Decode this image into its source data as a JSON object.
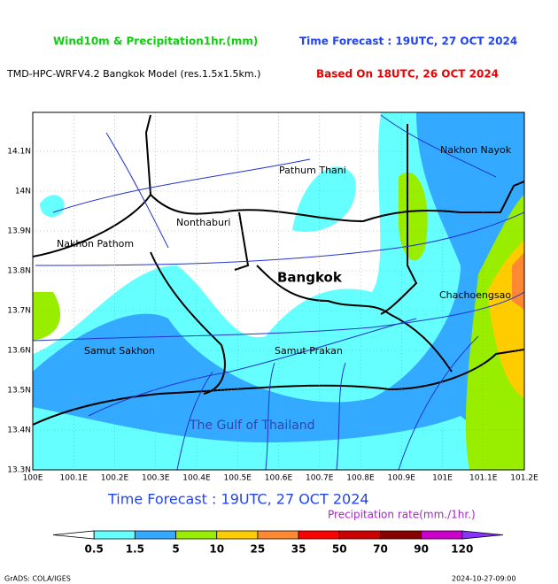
{
  "header": {
    "title": "Wind10m & Precipitation1hr.(mm)",
    "forecast_time": "Time Forecast : 19UTC, 27 OCT 2024",
    "model": "TMD-HPC-WRFV4.2 Bangkok Model (res.1.5x1.5km.)",
    "based_on": "Based On 18UTC, 26 OCT 2024"
  },
  "map": {
    "x_labels": [
      "100E",
      "100.1E",
      "100.2E",
      "100.3E",
      "100.4E",
      "100.5E",
      "100.6E",
      "100.7E",
      "100.8E",
      "100.9E",
      "101E",
      "101.1E",
      "101.2E"
    ],
    "y_labels": [
      "14.1N",
      "14N",
      "13.9N",
      "13.8N",
      "13.7N",
      "13.6N",
      "13.5N",
      "13.4N",
      "13.3N"
    ],
    "places": [
      "Pathum Thani",
      "Nakhon Nayok",
      "Nonthaburi",
      "Nakhon Pathom",
      "Bangkok",
      "Chachoengsao",
      "Samut Sakhon",
      "Samut Prakan",
      "The Gulf of Thailand"
    ]
  },
  "forecast_caption": "Time Forecast : 19UTC, 27 OCT 2024",
  "legend": {
    "title": "Precipitation rate(mm./1hr.)",
    "colors": [
      "#ffffff",
      "#66ffff",
      "#33aaff",
      "#99ee00",
      "#ffcc00",
      "#ff8833",
      "#ff0000",
      "#cc0000",
      "#880000",
      "#cc00cc",
      "#8833ff"
    ],
    "labels": [
      "0.5",
      "1.5",
      "5",
      "10",
      "25",
      "35",
      "50",
      "70",
      "90",
      "120"
    ]
  },
  "footer": {
    "credit": "GrADS: COLA/IGES",
    "timestamp": "2024-10-27-09:00"
  }
}
